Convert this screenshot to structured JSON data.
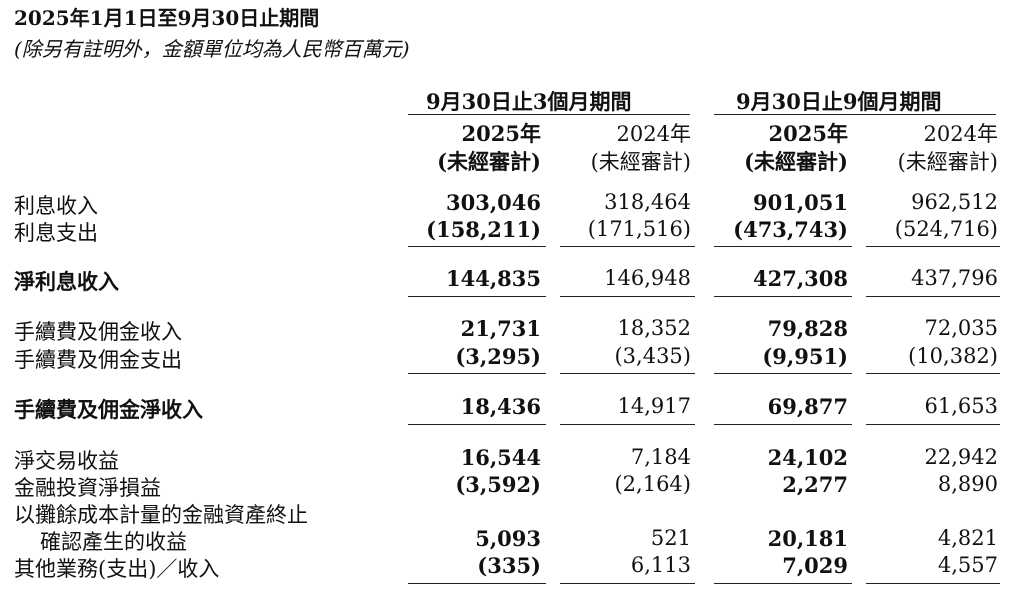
{
  "title": "2025年1月1日至9月30日止期間",
  "subtitle": "(除另有註明外，金額單位均為人民幣百萬元)",
  "header": {
    "group1": "9月30日止3個月期間",
    "group2": "9月30日止9個月期間",
    "year_2025": "2025年",
    "year_2024": "2024年",
    "unaudited": "(未經審計)"
  },
  "rows": [
    {
      "label": "利息收入",
      "v": [
        "303,046",
        "318,464",
        "901,051",
        "962,512"
      ]
    },
    {
      "label": "利息支出",
      "v": [
        "(158,211)",
        "(171,516)",
        "(473,743)",
        "(524,716)"
      ]
    },
    {
      "label": "淨利息收入",
      "v": [
        "144,835",
        "146,948",
        "427,308",
        "437,796"
      ]
    },
    {
      "label": "手續費及佣金收入",
      "v": [
        "21,731",
        "18,352",
        "79,828",
        "72,035"
      ]
    },
    {
      "label": "手續費及佣金支出",
      "v": [
        "(3,295)",
        "(3,435)",
        "(9,951)",
        "(10,382)"
      ]
    },
    {
      "label": "手續費及佣金淨收入",
      "v": [
        "18,436",
        "14,917",
        "69,877",
        "61,653"
      ]
    },
    {
      "label": "淨交易收益",
      "v": [
        "16,544",
        "7,184",
        "24,102",
        "22,942"
      ]
    },
    {
      "label": "金融投資淨損益",
      "v": [
        "(3,592)",
        "(2,164)",
        "2,277",
        "8,890"
      ]
    },
    {
      "label": "以攤餘成本計量的金融資產終止",
      "v": [
        "",
        "",
        "",
        ""
      ]
    },
    {
      "label": "確認產生的收益",
      "v": [
        "5,093",
        "521",
        "20,181",
        "4,821"
      ]
    },
    {
      "label": "其他業務(支出)／收入",
      "v": [
        "(335)",
        "6,113",
        "7,029",
        "4,557"
      ]
    }
  ]
}
